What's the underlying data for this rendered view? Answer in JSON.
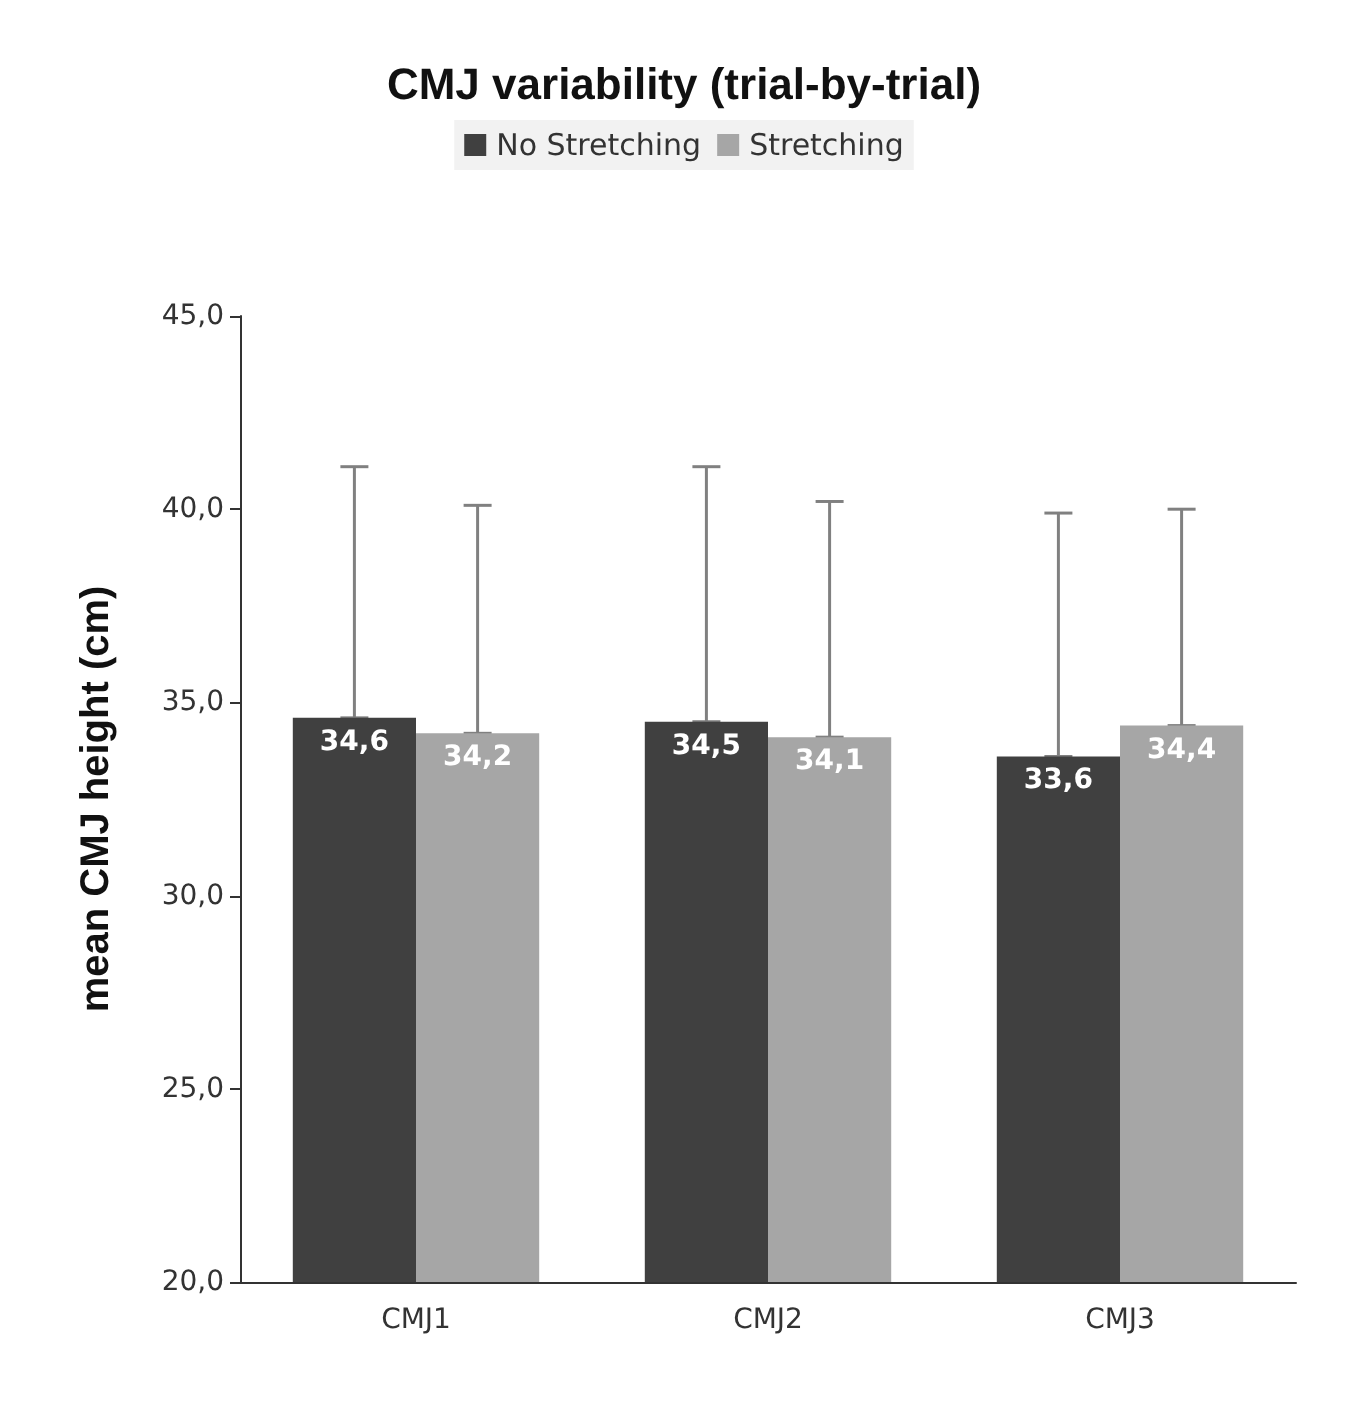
{
  "chart_data": {
    "type": "bar",
    "title": "CMJ variability (trial-by-trial)",
    "ylabel": "mean CMJ height (cm)",
    "categories": [
      "CMJ1",
      "CMJ2",
      "CMJ3"
    ],
    "series": [
      {
        "name": "No Stretching",
        "color": "#404040",
        "values": [
          34.6,
          34.5,
          33.6
        ],
        "value_labels": [
          "34,6",
          "34,5",
          "33,6"
        ],
        "errors": [
          [
            34.6,
            41.1
          ],
          [
            34.5,
            41.1
          ],
          [
            33.6,
            39.9
          ]
        ]
      },
      {
        "name": "Stretching",
        "color": "#a6a6a6",
        "values": [
          34.2,
          34.1,
          34.4
        ],
        "value_labels": [
          "34,2",
          "34,1",
          "34,4"
        ],
        "errors": [
          [
            34.2,
            40.1
          ],
          [
            34.1,
            40.2
          ],
          [
            34.4,
            40.0
          ]
        ]
      }
    ],
    "ylim": [
      20,
      45
    ],
    "yticks": [
      {
        "value": 20,
        "label": "20,0"
      },
      {
        "value": 25,
        "label": "25,0"
      },
      {
        "value": 30,
        "label": "30,0"
      },
      {
        "value": 35,
        "label": "35,0"
      },
      {
        "value": 40,
        "label": "40,0"
      },
      {
        "value": 45,
        "label": "45,0"
      }
    ],
    "grid": false,
    "legend": "top"
  }
}
